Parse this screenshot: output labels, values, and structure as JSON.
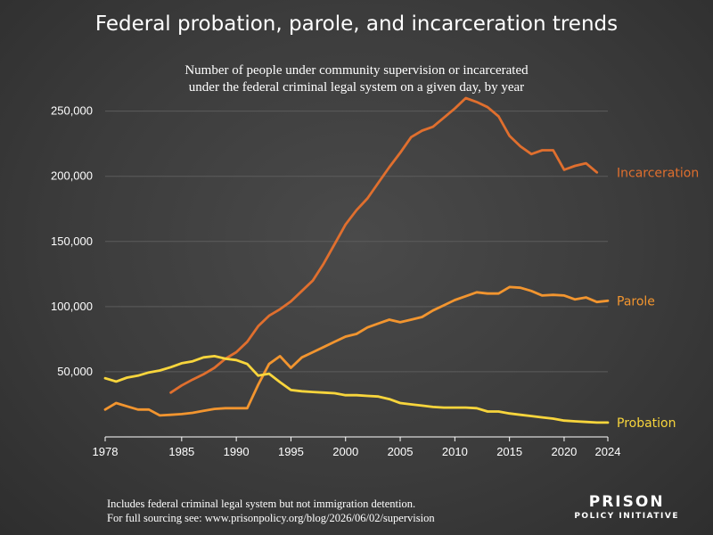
{
  "chart_data": {
    "type": "line",
    "title": "Federal probation, parole, and incarceration trends",
    "subtitle_lines": [
      "Number of people under community supervision or incarcerated",
      "under the federal criminal legal system on a given day, by year"
    ],
    "xlabel": "",
    "ylabel": "",
    "xlim": [
      1978,
      2024
    ],
    "ylim": [
      0,
      260000
    ],
    "x_ticks": [
      "1978",
      "1985",
      "1990",
      "1995",
      "2000",
      "2005",
      "2010",
      "2015",
      "2020",
      "2024"
    ],
    "x_tick_values": [
      1978,
      1985,
      1990,
      1995,
      2000,
      2005,
      2010,
      2015,
      2020,
      2024
    ],
    "y_ticks": [
      "50,000",
      "100,000",
      "150,000",
      "200,000",
      "250,000"
    ],
    "y_tick_values": [
      50000,
      100000,
      150000,
      200000,
      250000
    ],
    "grid": true,
    "legend": "labels at line ends",
    "series": [
      {
        "name": "Incarceration",
        "color": "#e06f2e",
        "x": [
          1984,
          1985,
          1986,
          1987,
          1988,
          1989,
          1990,
          1991,
          1992,
          1993,
          1994,
          1995,
          1996,
          1997,
          1998,
          1999,
          2000,
          2001,
          2002,
          2003,
          2004,
          2005,
          2006,
          2007,
          2008,
          2009,
          2010,
          2011,
          2012,
          2013,
          2014,
          2015,
          2016,
          2017,
          2018,
          2019,
          2020,
          2021,
          2022,
          2023
        ],
        "values": [
          34000,
          39500,
          44000,
          48000,
          53000,
          60000,
          65000,
          73000,
          85000,
          93000,
          98000,
          104000,
          112000,
          120000,
          133000,
          148000,
          163000,
          174000,
          183000,
          195000,
          207000,
          218000,
          230000,
          235000,
          238000,
          245000,
          252000,
          260000,
          257000,
          253000,
          246000,
          231000,
          223000,
          217000,
          220000,
          220000,
          205000,
          208000,
          210000,
          203000
        ]
      },
      {
        "name": "Parole",
        "color": "#f2952f",
        "x": [
          1978,
          1979,
          1980,
          1981,
          1982,
          1983,
          1984,
          1985,
          1986,
          1987,
          1988,
          1989,
          1990,
          1991,
          1992,
          1993,
          1994,
          1995,
          1996,
          1997,
          1998,
          1999,
          2000,
          2001,
          2002,
          2003,
          2004,
          2005,
          2006,
          2007,
          2008,
          2009,
          2010,
          2011,
          2012,
          2013,
          2014,
          2015,
          2016,
          2017,
          2018,
          2019,
          2020,
          2021,
          2022,
          2023,
          2024
        ],
        "values": [
          21000,
          26000,
          23500,
          21000,
          21000,
          16500,
          17000,
          17500,
          18500,
          20000,
          21500,
          22000,
          22000,
          22000,
          40000,
          56000,
          62000,
          53000,
          61000,
          65000,
          69000,
          73000,
          77000,
          79000,
          84000,
          87000,
          90000,
          88000,
          90000,
          92000,
          97000,
          101000,
          105000,
          108000,
          111000,
          110000,
          110000,
          115000,
          114500,
          112000,
          108500,
          109000,
          108500,
          105500,
          107000,
          103500,
          104500
        ]
      },
      {
        "name": "Probation",
        "color": "#f8d53c",
        "x": [
          1978,
          1979,
          1980,
          1981,
          1982,
          1983,
          1984,
          1985,
          1986,
          1987,
          1988,
          1989,
          1990,
          1991,
          1992,
          1993,
          1994,
          1995,
          1996,
          1997,
          1998,
          1999,
          2000,
          2001,
          2002,
          2003,
          2004,
          2005,
          2006,
          2007,
          2008,
          2009,
          2010,
          2011,
          2012,
          2013,
          2014,
          2015,
          2016,
          2017,
          2018,
          2019,
          2020,
          2021,
          2022,
          2023,
          2024
        ],
        "values": [
          45000,
          42500,
          45500,
          47000,
          49500,
          51000,
          53500,
          56500,
          58000,
          61000,
          62000,
          60000,
          59000,
          56000,
          47000,
          48500,
          42000,
          36000,
          35000,
          34500,
          34000,
          33500,
          32000,
          32000,
          31500,
          31000,
          29000,
          26000,
          25000,
          24000,
          23000,
          22500,
          22500,
          22500,
          22000,
          19500,
          19500,
          18000,
          17000,
          16000,
          15000,
          14000,
          12500,
          12000,
          11500,
          11000,
          11000
        ]
      }
    ]
  },
  "footnote": {
    "line1": "Includes federal criminal legal system but not immigration detention.",
    "line2": "For full sourcing see: www.prisonpolicy.org/blog/2026/06/02/supervision"
  },
  "logo": {
    "line1": "PRISON",
    "line2": "POLICY INITIATIVE"
  }
}
